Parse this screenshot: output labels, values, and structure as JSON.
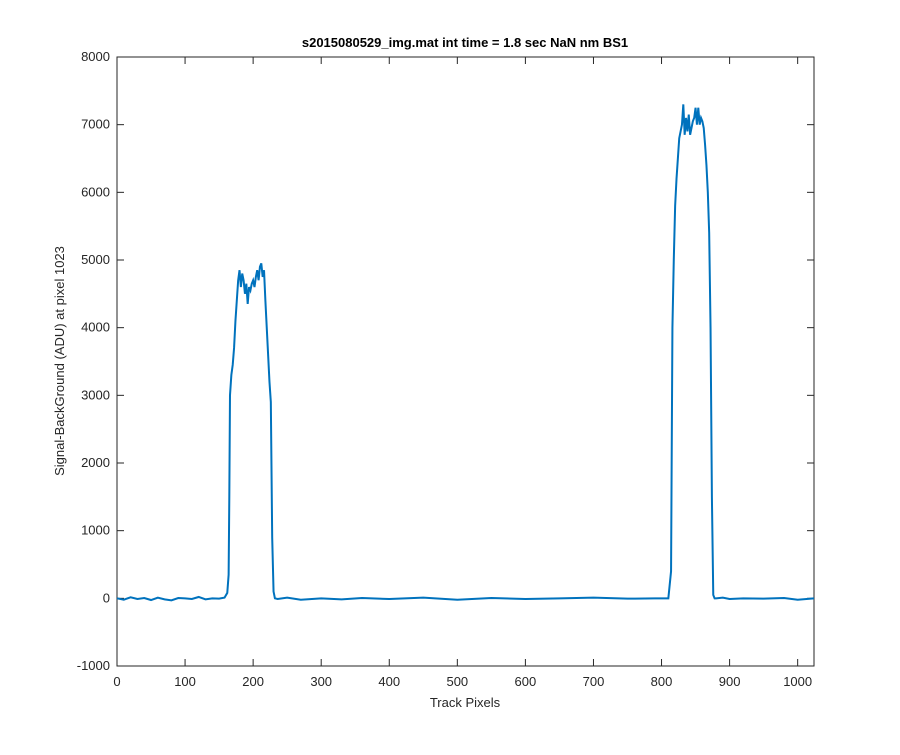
{
  "chart_data": {
    "type": "line",
    "title": "s2015080529_img.mat int time = 1.8 sec  NaN nm BS1",
    "xlabel": "Track Pixels",
    "ylabel": "Signal-BackGround (ADU) at pixel 1023",
    "xlim": [
      0,
      1024
    ],
    "ylim": [
      -1000,
      8000
    ],
    "xticks": [
      0,
      100,
      200,
      300,
      400,
      500,
      600,
      700,
      800,
      900,
      1000
    ],
    "yticks": [
      -1000,
      0,
      1000,
      2000,
      3000,
      4000,
      5000,
      6000,
      7000,
      8000
    ],
    "grid": false,
    "legend": "none",
    "series_color": "#0072bd",
    "series": [
      {
        "x": [
          0,
          10,
          20,
          30,
          40,
          50,
          60,
          70,
          80,
          90,
          100,
          110,
          120,
          130,
          140,
          150,
          158,
          162,
          164,
          165,
          166,
          168,
          170,
          172,
          174,
          176,
          178,
          180,
          182,
          184,
          186,
          188,
          190,
          192,
          194,
          196,
          198,
          200,
          202,
          204,
          206,
          208,
          210,
          212,
          214,
          216,
          218,
          220,
          222,
          224,
          226,
          228,
          230,
          232,
          236,
          250,
          270,
          300,
          330,
          360,
          400,
          450,
          500,
          550,
          600,
          650,
          700,
          750,
          790,
          810,
          814,
          816,
          818,
          820,
          822,
          824,
          826,
          828,
          830,
          832,
          834,
          836,
          838,
          840,
          842,
          844,
          846,
          848,
          850,
          852,
          854,
          856,
          858,
          860,
          862,
          864,
          866,
          868,
          870,
          872,
          874,
          876,
          878,
          880,
          890,
          900,
          920,
          950,
          980,
          1000,
          1024
        ],
        "y": [
          0,
          -20,
          15,
          -10,
          5,
          -25,
          10,
          -15,
          -30,
          5,
          0,
          -10,
          20,
          -15,
          0,
          -5,
          10,
          80,
          350,
          1500,
          3000,
          3300,
          3450,
          3700,
          4100,
          4400,
          4700,
          4850,
          4600,
          4800,
          4700,
          4500,
          4650,
          4350,
          4600,
          4550,
          4650,
          4700,
          4600,
          4750,
          4850,
          4700,
          4900,
          4950,
          4750,
          4850,
          4400,
          4000,
          3600,
          3200,
          2900,
          900,
          100,
          0,
          -10,
          10,
          -20,
          0,
          -15,
          5,
          -10,
          10,
          -20,
          5,
          -10,
          0,
          10,
          -5,
          0,
          0,
          400,
          4000,
          5000,
          5800,
          6200,
          6500,
          6800,
          6900,
          7000,
          7300,
          6850,
          7100,
          6900,
          7150,
          6850,
          6950,
          7050,
          7100,
          7250,
          7000,
          7250,
          7000,
          7100,
          7050,
          6950,
          6700,
          6400,
          6000,
          5400,
          4000,
          1500,
          50,
          0,
          0,
          10,
          -10,
          0,
          -5,
          5,
          -20,
          0
        ]
      }
    ]
  }
}
